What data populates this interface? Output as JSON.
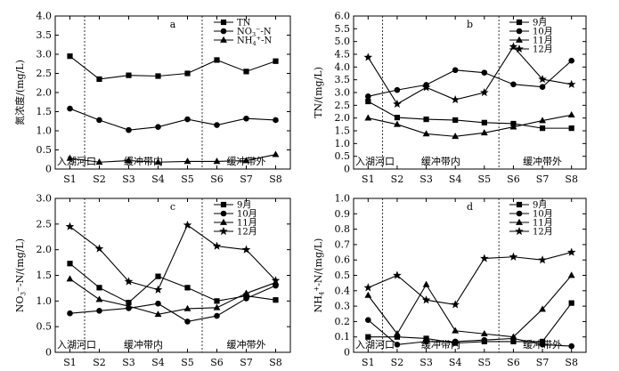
{
  "chart_data": [
    {
      "type": "line",
      "panel_letter": "a",
      "ylabel": "氮浓度/(mg/L)",
      "categories": [
        "S1",
        "S2",
        "S3",
        "S4",
        "S5",
        "S6",
        "S7",
        "S8"
      ],
      "ylim": [
        0,
        4.0
      ],
      "yticks": [
        "0",
        "0.5",
        "1.0",
        "1.5",
        "2.0",
        "2.5",
        "3.0",
        "3.5",
        "4.0"
      ],
      "zones": [
        "入湖河口",
        "缓冲带内",
        "缓冲带外"
      ],
      "divider_after": [
        "S1",
        "S5"
      ],
      "legend_position": "top-right",
      "series": [
        {
          "name": "TN",
          "marker": "square",
          "values": [
            2.95,
            2.35,
            2.45,
            2.43,
            2.5,
            2.85,
            2.55,
            2.82
          ]
        },
        {
          "name": "NO3-N",
          "marker": "circle",
          "values": [
            1.58,
            1.28,
            1.02,
            1.1,
            1.3,
            1.15,
            1.32,
            1.28
          ]
        },
        {
          "name": "NH4-N",
          "marker": "triangle",
          "values": [
            0.28,
            0.18,
            0.22,
            0.18,
            0.2,
            0.2,
            0.22,
            0.38
          ]
        }
      ]
    },
    {
      "type": "line",
      "panel_letter": "b",
      "ylabel": "TN/(mg/L)",
      "categories": [
        "S1",
        "S2",
        "S3",
        "S4",
        "S5",
        "S6",
        "S7",
        "S8"
      ],
      "ylim": [
        0,
        6.0
      ],
      "yticks": [
        "0",
        "0.5",
        "1.0",
        "1.5",
        "2.0",
        "2.5",
        "3.0",
        "3.5",
        "4.0",
        "4.5",
        "5.0",
        "5.5",
        "6.0"
      ],
      "zones": [
        "入湖河口",
        "缓冲带内",
        "缓冲带外"
      ],
      "divider_after": [
        "S1",
        "S5"
      ],
      "legend_position": "top-right",
      "series": [
        {
          "name": "9月",
          "marker": "square",
          "values": [
            2.65,
            2.02,
            1.95,
            1.92,
            1.82,
            1.78,
            1.6,
            1.6
          ]
        },
        {
          "name": "10月",
          "marker": "circle",
          "values": [
            2.85,
            3.1,
            3.3,
            3.88,
            3.78,
            3.32,
            3.22,
            4.25
          ]
        },
        {
          "name": "11月",
          "marker": "triangle",
          "values": [
            2.0,
            1.75,
            1.38,
            1.28,
            1.42,
            1.65,
            1.9,
            2.12
          ]
        },
        {
          "name": "12月",
          "marker": "star",
          "values": [
            4.38,
            2.55,
            3.2,
            2.72,
            3.0,
            4.8,
            3.52,
            3.32
          ]
        }
      ]
    },
    {
      "type": "line",
      "panel_letter": "c",
      "ylabel": "NO3-N/(mg/L)",
      "categories": [
        "S1",
        "S2",
        "S3",
        "S4",
        "S5",
        "S6",
        "S7",
        "S8"
      ],
      "ylim": [
        0,
        3.0
      ],
      "yticks": [
        "0",
        "0.5",
        "1.0",
        "1.5",
        "2.0",
        "2.5",
        "3.0"
      ],
      "zones": [
        "入湖河口",
        "缓冲带内",
        "缓冲带外"
      ],
      "divider_after": [
        "S1",
        "S5"
      ],
      "legend_position": "top-right",
      "series": [
        {
          "name": "9月",
          "marker": "square",
          "values": [
            1.73,
            1.26,
            0.97,
            1.48,
            1.26,
            1.0,
            1.1,
            1.02
          ]
        },
        {
          "name": "10月",
          "marker": "circle",
          "values": [
            0.76,
            0.81,
            0.86,
            0.95,
            0.6,
            0.71,
            1.05,
            1.3
          ]
        },
        {
          "name": "11月",
          "marker": "triangle",
          "values": [
            1.43,
            1.03,
            0.9,
            0.74,
            0.85,
            0.87,
            1.15,
            1.36
          ]
        },
        {
          "name": "12月",
          "marker": "star",
          "values": [
            2.45,
            2.02,
            1.38,
            1.22,
            2.48,
            2.07,
            2.0,
            1.4
          ]
        }
      ]
    },
    {
      "type": "line",
      "panel_letter": "d",
      "ylabel": "NH4-N/(mg/L)",
      "categories": [
        "S1",
        "S2",
        "S3",
        "S4",
        "S5",
        "S6",
        "S7",
        "S8"
      ],
      "ylim": [
        0,
        1.0
      ],
      "yticks": [
        "0",
        "0.1",
        "0.2",
        "0.3",
        "0.4",
        "0.5",
        "0.6",
        "0.7",
        "0.8",
        "0.9",
        "1.0"
      ],
      "zones": [
        "入湖河口",
        "缓冲带内",
        "缓冲带外"
      ],
      "divider_after": [
        "S1",
        "S5"
      ],
      "legend_position": "top-right",
      "series": [
        {
          "name": "9月",
          "marker": "square",
          "values": [
            0.1,
            0.1,
            0.09,
            0.06,
            0.07,
            0.07,
            0.07,
            0.32
          ]
        },
        {
          "name": "10月",
          "marker": "circle",
          "values": [
            0.21,
            0.05,
            0.07,
            0.07,
            0.08,
            0.09,
            0.05,
            0.04
          ]
        },
        {
          "name": "11月",
          "marker": "triangle",
          "values": [
            0.37,
            0.12,
            0.44,
            0.14,
            0.12,
            0.1,
            0.28,
            0.5
          ]
        },
        {
          "name": "12月",
          "marker": "star",
          "values": [
            0.42,
            0.5,
            0.34,
            0.31,
            0.61,
            0.62,
            0.6,
            0.65
          ]
        }
      ]
    }
  ]
}
